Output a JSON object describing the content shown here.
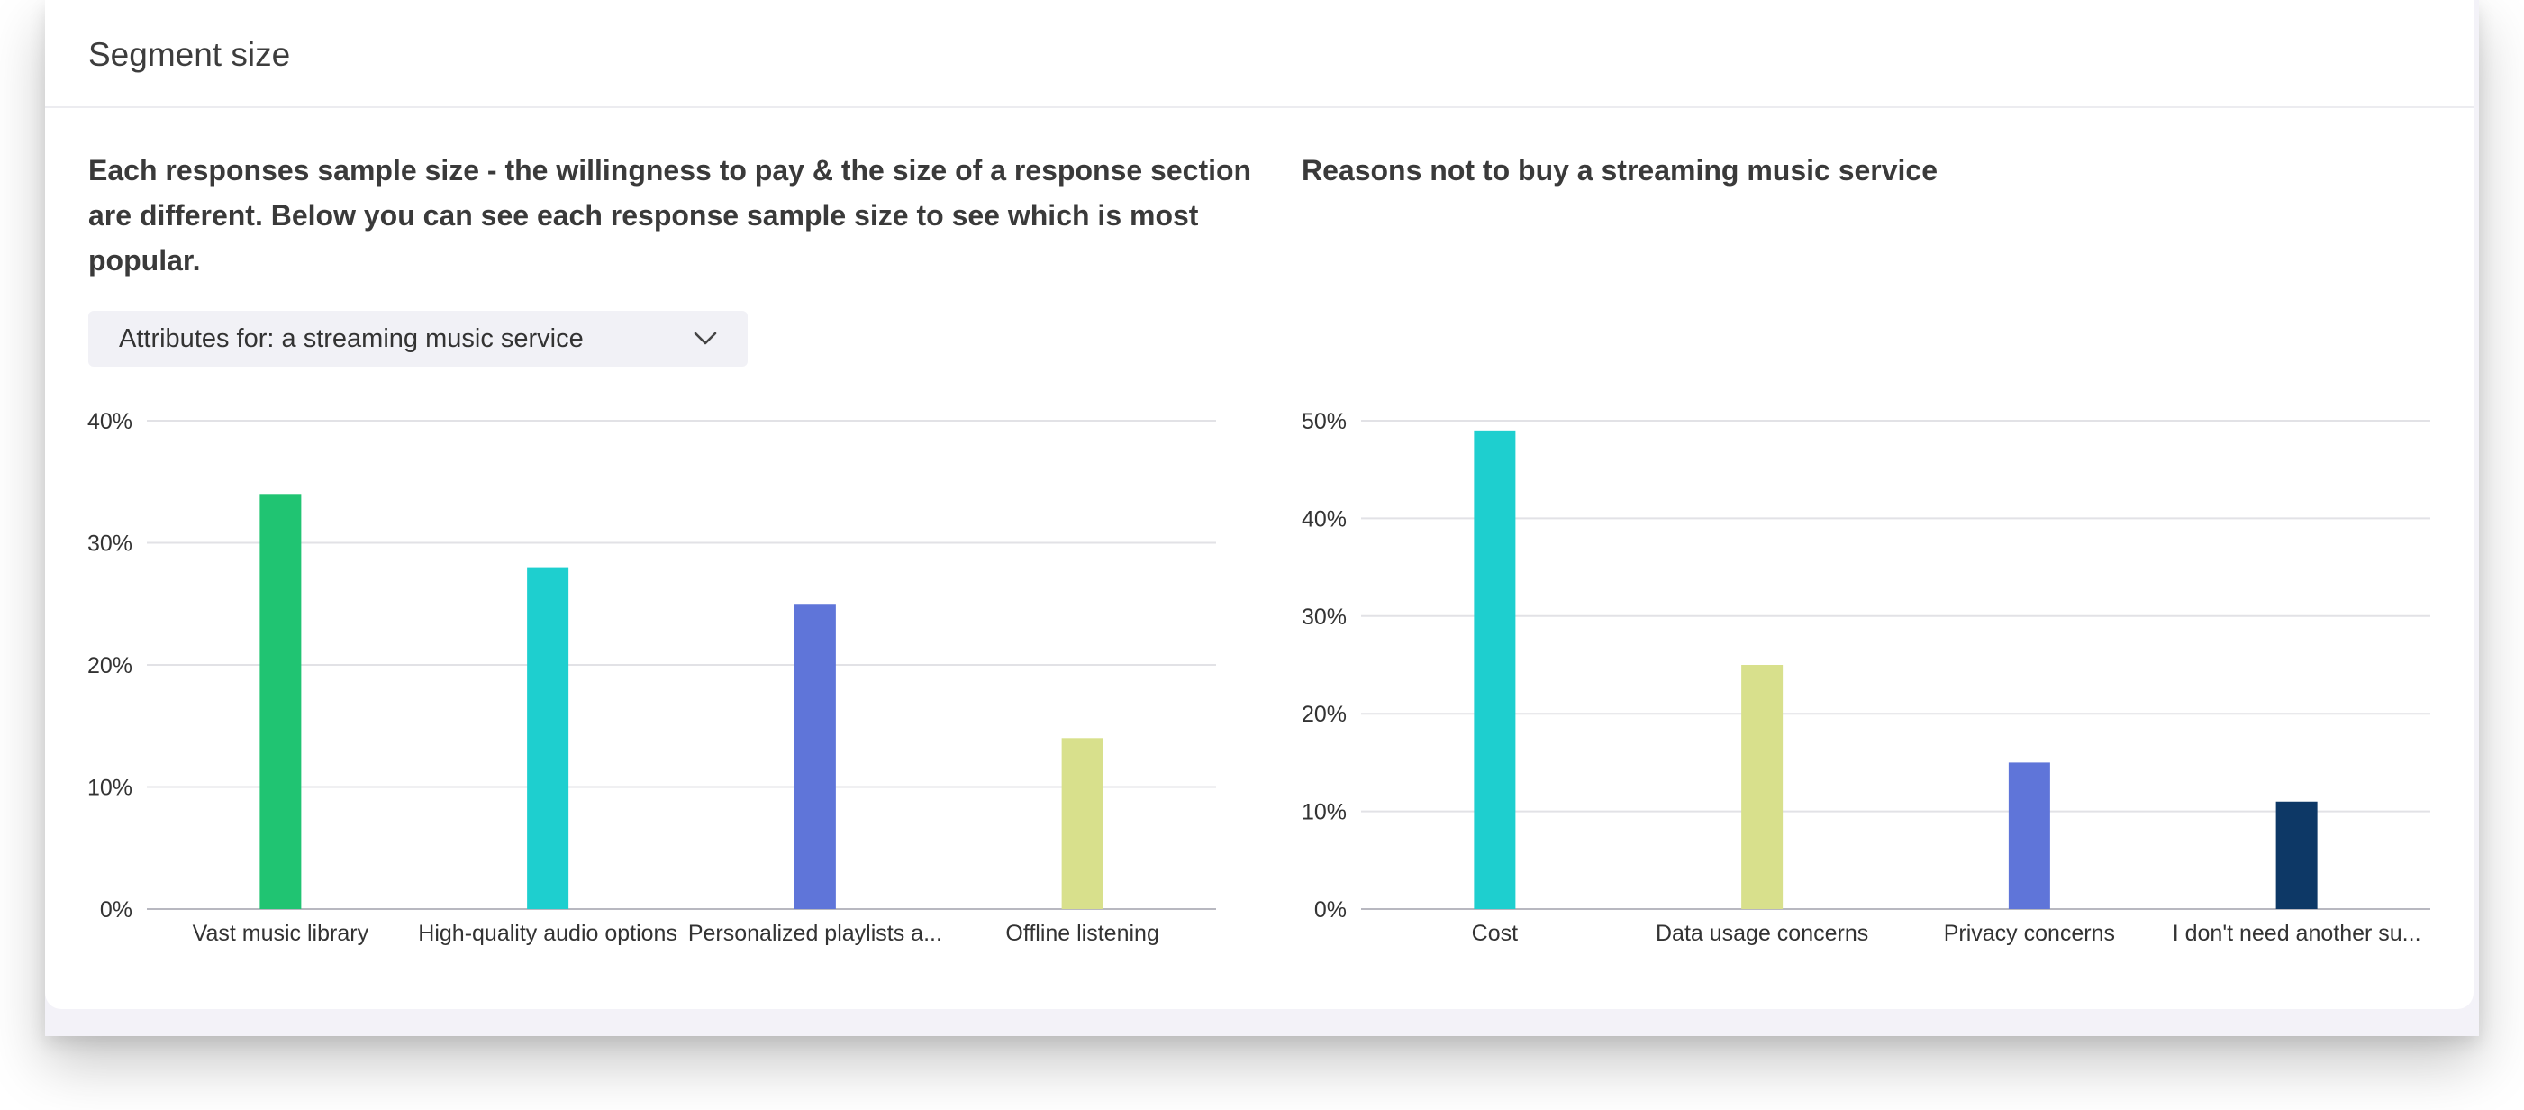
{
  "card": {
    "title": "Segment size"
  },
  "left_panel": {
    "description": "Each responses sample size - the willingness to pay & the size of a response section are different. Below you can see each response sample size to see which is most popular.",
    "dropdown": {
      "selected": "Attributes for: a streaming music service",
      "icon": "chevron-down-icon"
    }
  },
  "right_panel": {
    "description": "Reasons not to buy a streaming music service"
  },
  "chart_data": [
    {
      "type": "bar",
      "title": "",
      "xlabel": "",
      "ylabel": "",
      "ylim": [
        0,
        40
      ],
      "y_ticks": [
        "0%",
        "10%",
        "20%",
        "30%",
        "40%"
      ],
      "y_tick_values": [
        0,
        10,
        20,
        30,
        40
      ],
      "categories": [
        "Vast music library",
        "High-quality audio options",
        "Personalized playlists a...",
        "Offline listening"
      ],
      "values": [
        34,
        28,
        25,
        14
      ],
      "colors": [
        "#20c472",
        "#1ecfcf",
        "#5f75d9",
        "#d8e08c"
      ],
      "grid": true
    },
    {
      "type": "bar",
      "title": "",
      "xlabel": "",
      "ylabel": "",
      "ylim": [
        0,
        50
      ],
      "y_ticks": [
        "0%",
        "10%",
        "20%",
        "30%",
        "40%",
        "50%"
      ],
      "y_tick_values": [
        0,
        10,
        20,
        30,
        40,
        50
      ],
      "categories": [
        "Cost",
        "Data usage concerns",
        "Privacy concerns",
        "I don't need another su..."
      ],
      "values": [
        49,
        25,
        15,
        11
      ],
      "colors": [
        "#1ecfcf",
        "#d8e08c",
        "#5f75d9",
        "#0d3866"
      ],
      "grid": true
    }
  ]
}
